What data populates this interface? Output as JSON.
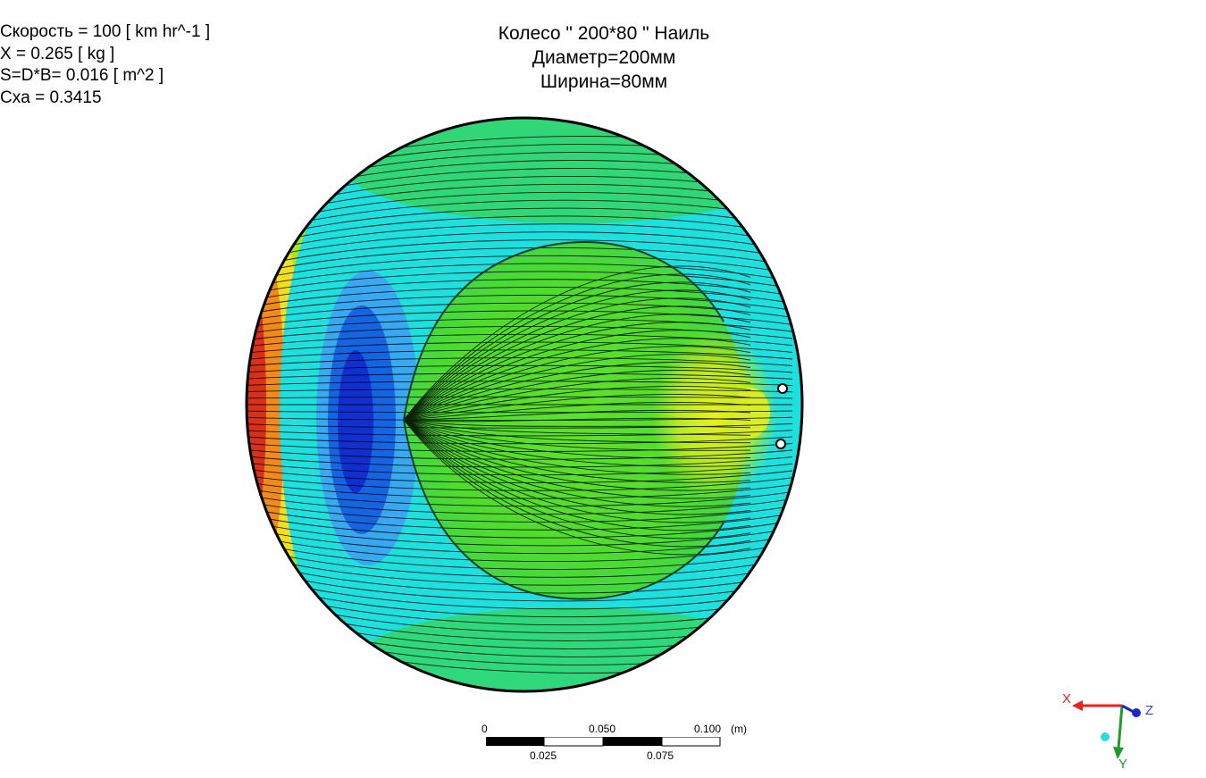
{
  "info_panel": {
    "speed": "Скорость = 100 [ km hr^-1 ]",
    "force_x": "X = 0.265 [ kg ]",
    "area": "S=D*B= 0.016 [ m^2 ]",
    "drag_coefficient": "Cxa = 0.3415"
  },
  "title": {
    "line1": "Колесо \" 200*80 \" Наиль",
    "line2": "Диаметр=200мм",
    "line3": "Ширина=80мм"
  },
  "scale_bar": {
    "top_labels": [
      "0",
      "0.050",
      "0.100"
    ],
    "unit": "(m)",
    "bottom_labels": [
      "0.025",
      "0.075"
    ]
  },
  "axis_triad": {
    "x_label": "X",
    "y_label": "Y",
    "z_label": "Z",
    "x_color": "#e8231c",
    "y_color": "#1f9a2b",
    "z_color": "#1a27c9",
    "origin_dot_color": "#2fd9e0"
  },
  "contour": {
    "colors": {
      "red": "#d9301a",
      "orange": "#f08a1a",
      "yellow": "#f2df20",
      "yellow_green": "#a9e61e",
      "green": "#4fe02a",
      "cyan": "#19e3e3",
      "light_blue": "#38a8f0",
      "blue": "#1565e3",
      "deep_blue": "#0f2fd1"
    }
  }
}
